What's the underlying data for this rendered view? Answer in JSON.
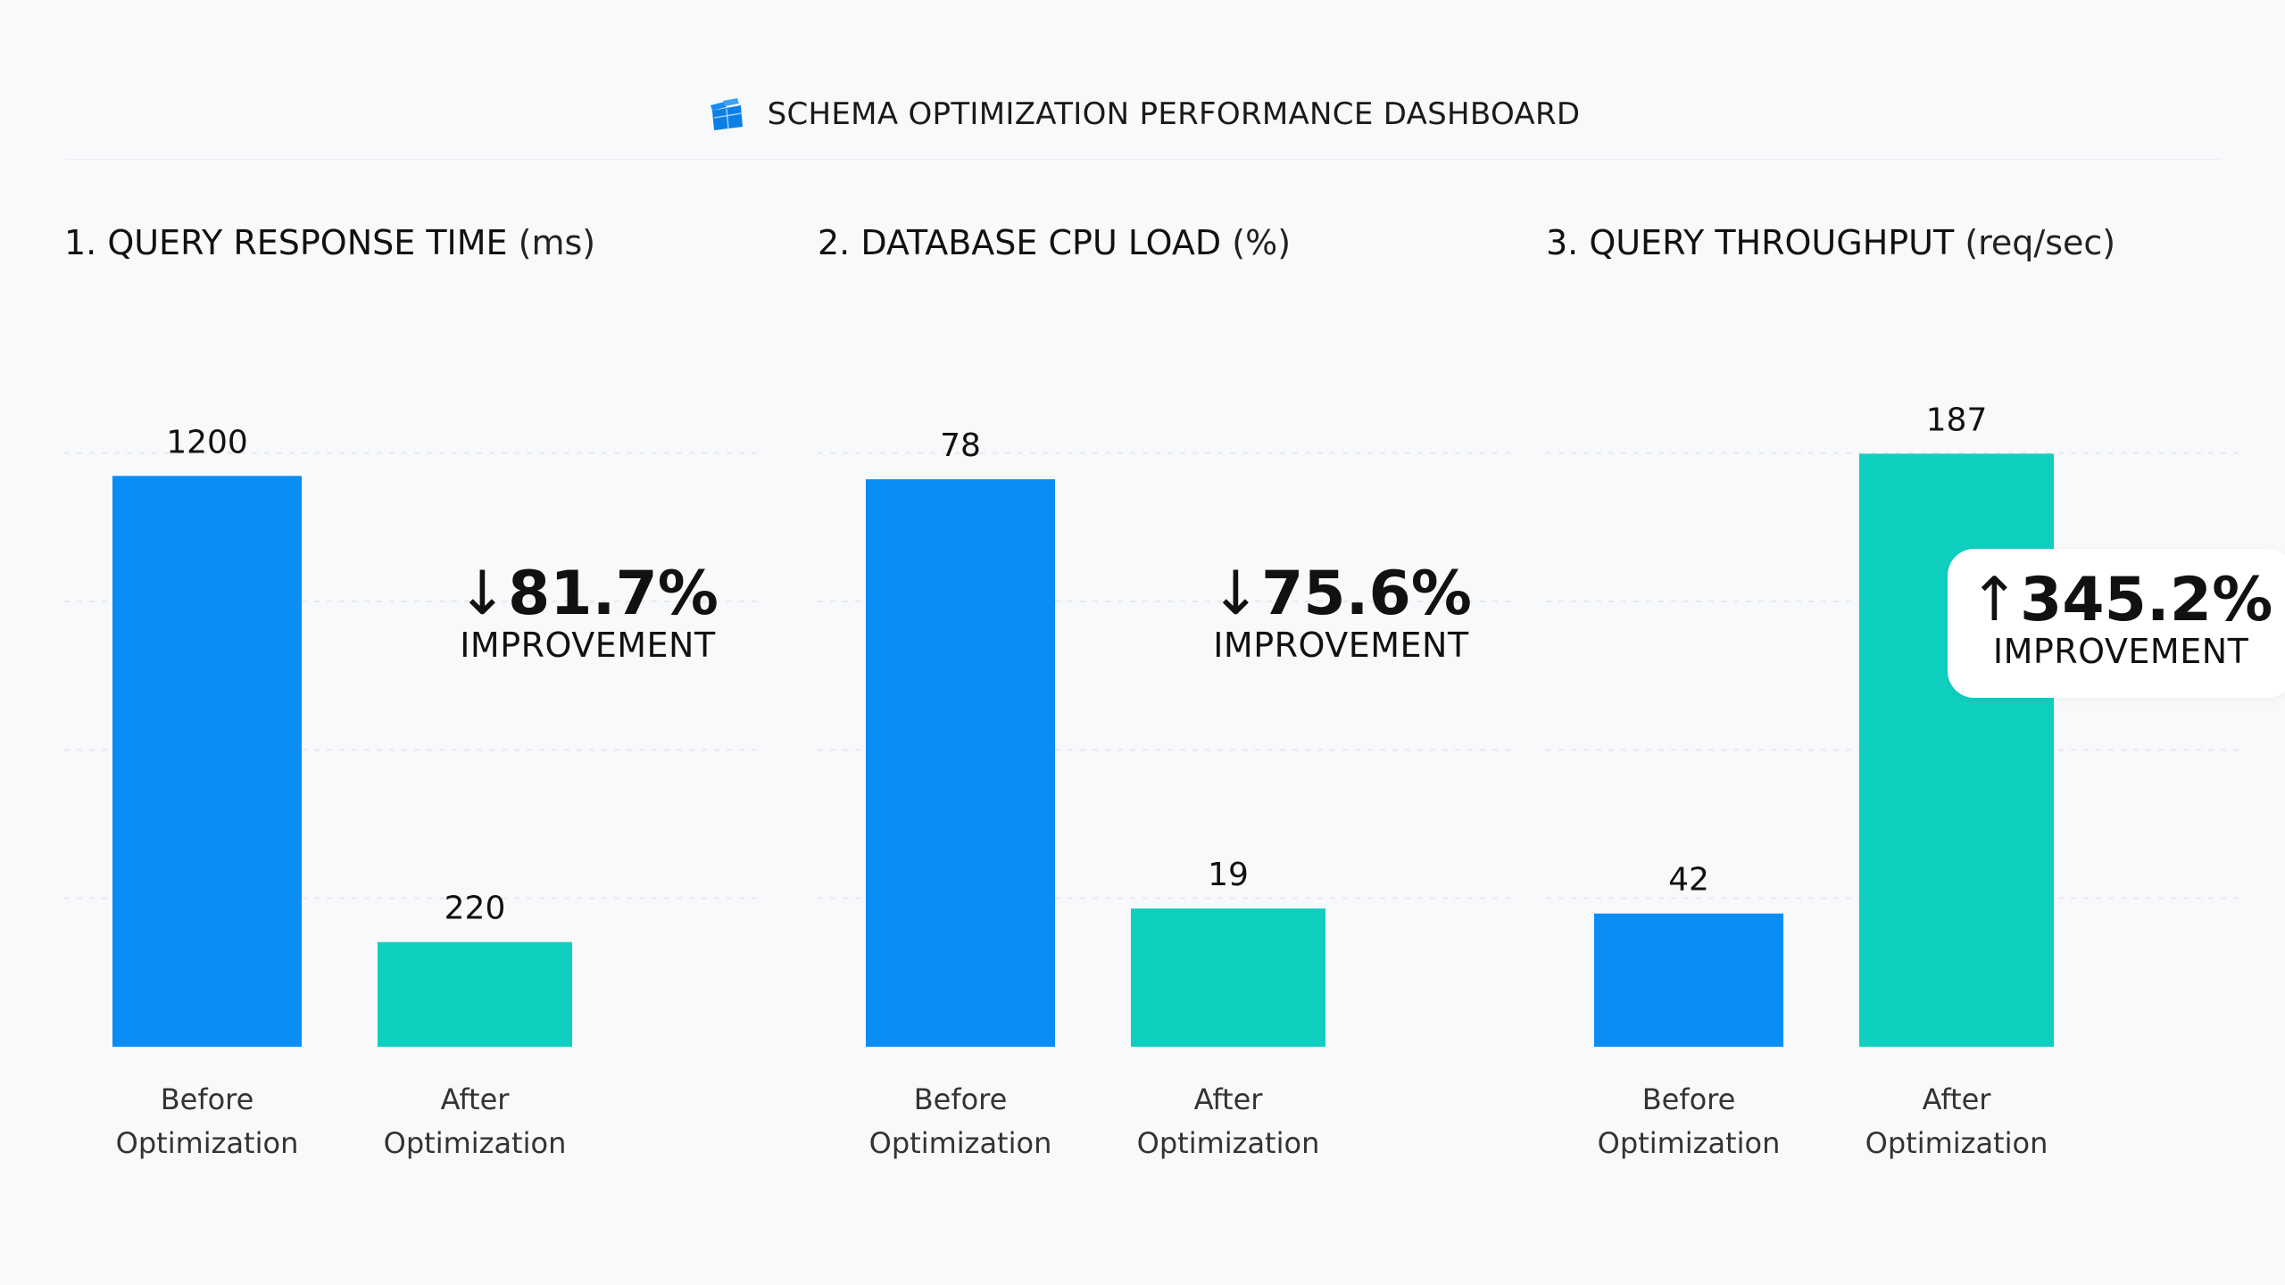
{
  "dashboard": {
    "title": "SCHEMA OPTIMIZATION PERFORMANCE DASHBOARD",
    "logo_icon": "database-tables-icon",
    "accent_before": "#0a8df5",
    "accent_after": "#0fcfbf"
  },
  "chart_data": [
    {
      "type": "bar",
      "title": "1. QUERY RESPONSE TIME",
      "unit": "(ms)",
      "categories": [
        "Before\nOptimization",
        "After\nOptimization"
      ],
      "values": [
        1200,
        220
      ],
      "colors": [
        "#0a8df5",
        "#0fcfbf"
      ],
      "ylim": [
        0,
        1300
      ],
      "grid": true,
      "change": {
        "direction": "down",
        "arrow": "↓",
        "percent": "81.7%",
        "label": "IMPROVEMENT"
      }
    },
    {
      "type": "bar",
      "title": "2. DATABASE CPU LOAD",
      "unit": "(%)",
      "categories": [
        "Before\nOptimization",
        "After\nOptimization"
      ],
      "values": [
        78,
        19
      ],
      "colors": [
        "#0a8df5",
        "#0fcfbf"
      ],
      "ylim": [
        0,
        85
      ],
      "grid": true,
      "change": {
        "direction": "down",
        "arrow": "↓",
        "percent": "75.6%",
        "label": "IMPROVEMENT"
      }
    },
    {
      "type": "bar",
      "title": "3. QUERY THROUGHPUT",
      "unit": "(req/sec)",
      "categories": [
        "Before\nOptimization",
        "After\nOptimization"
      ],
      "values": [
        42,
        187
      ],
      "colors": [
        "#0a8df5",
        "#0fcfbf"
      ],
      "ylim": [
        0,
        195
      ],
      "grid": true,
      "change": {
        "direction": "up",
        "arrow": "↑",
        "percent": "345.2%",
        "label": "IMPROVEMENT"
      }
    }
  ]
}
